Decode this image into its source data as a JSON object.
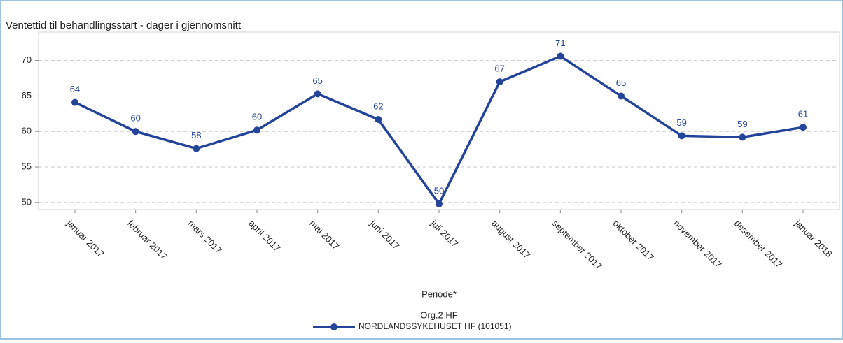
{
  "chart_data": {
    "type": "line",
    "title": "Ventettid til behandlingsstart - dager i gjennomsnitt",
    "x_label": "Periode*",
    "legend_title": "Org.2 HF",
    "categories": [
      "januar 2017",
      "februar 2017",
      "mars 2017",
      "april 2017",
      "mai 2017",
      "juni 2017",
      "juli 2017",
      "august 2017",
      "september 2017",
      "oktober 2017",
      "november 2017",
      "desember 2017",
      "januar 2018"
    ],
    "series": [
      {
        "name": "NORDLANDSSYKEHUSET HF (101051)",
        "color": "#24449a",
        "values": [
          64.1,
          60.0,
          57.6,
          60.2,
          65.3,
          61.7,
          49.8,
          67.0,
          70.6,
          65.0,
          59.4,
          59.2,
          60.6
        ],
        "value_labels": [
          "64",
          "60",
          "58",
          "60",
          "65",
          "62",
          "50",
          "67",
          "71",
          "65",
          "59",
          "59",
          "61"
        ]
      }
    ],
    "ylim": [
      49,
      74
    ],
    "yticks": [
      50,
      55,
      60,
      65,
      70
    ],
    "grid": true
  }
}
